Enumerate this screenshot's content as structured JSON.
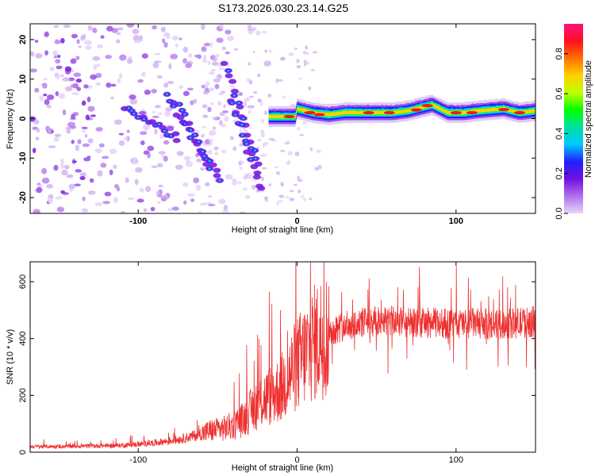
{
  "figure": {
    "title": "S173.2026.030.23.14.G25"
  },
  "colors": {
    "snr_line": "#ee3030",
    "frame": "#000000",
    "background": "#ffffff"
  },
  "chart_data": [
    {
      "type": "heatmap",
      "name": "spectrogram",
      "title": "S173.2026.030.23.14.G25",
      "xlabel": "Height of straight line (km)",
      "ylabel": "Frequency (Hz)",
      "xlim": [
        -168,
        150
      ],
      "ylim": [
        -24,
        24
      ],
      "xticks": [
        -100,
        0,
        100
      ],
      "xtick_labels": [
        "-100",
        "0",
        "100"
      ],
      "yticks": [
        -20,
        -10,
        0,
        10,
        20
      ],
      "ytick_labels": [
        "-20",
        "-10",
        "0",
        "10",
        "20"
      ],
      "colorbar": {
        "label": "Normalized spectral amplitude",
        "range": [
          0,
          0.95
        ],
        "ticks": [
          0.0,
          0.2,
          0.4,
          0.6,
          0.8
        ],
        "tick_labels": [
          "0.0",
          "0.2",
          "0.4",
          "0.6",
          "0.8"
        ],
        "colormap": [
          "#e6d6f8",
          "#b070ee",
          "#7010e0",
          "#2020ff",
          "#00c8ff",
          "#00e0a0",
          "#00ff00",
          "#c0ff00",
          "#ffd000",
          "#ff7000",
          "#ff1020",
          "#ff1080"
        ]
      },
      "ridge": {
        "points": [
          [
            0,
            2.5
          ],
          [
            5,
            2.0
          ],
          [
            10,
            1.5
          ],
          [
            20,
            1.0
          ],
          [
            30,
            1.5
          ],
          [
            40,
            1.5
          ],
          [
            60,
            1.5
          ],
          [
            70,
            2.0
          ],
          [
            75,
            2.5
          ],
          [
            85,
            3.5
          ],
          [
            90,
            2.5
          ],
          [
            95,
            1.5
          ],
          [
            105,
            1.5
          ],
          [
            115,
            2.0
          ],
          [
            130,
            2.5
          ],
          [
            140,
            1.5
          ],
          [
            150,
            2.0
          ]
        ],
        "description": "tracked signal"
      },
      "descending_branches": [
        {
          "start": [
            -108,
            3
          ],
          "end": [
            -75,
            -5
          ]
        },
        {
          "start": [
            -82,
            6
          ],
          "end": [
            -55,
            -12
          ]
        },
        {
          "start": [
            -75,
            3
          ],
          "end": [
            -48,
            -16
          ]
        },
        {
          "start": [
            -45,
            14
          ],
          "end": [
            -25,
            -12
          ]
        },
        {
          "start": [
            -42,
            5
          ],
          "end": [
            -22,
            -18
          ]
        }
      ]
    },
    {
      "type": "line",
      "name": "snr",
      "xlabel": "Height of straight line (km)",
      "ylabel": "SNR (10 * v/v)",
      "xlim": [
        -168,
        150
      ],
      "ylim": [
        0,
        670
      ],
      "xticks": [
        -100,
        0,
        100
      ],
      "xtick_labels": [
        "-100",
        "0",
        "100"
      ],
      "yticks": [
        0,
        200,
        400,
        600
      ],
      "ytick_labels": [
        "0",
        "200",
        "400",
        "600"
      ],
      "series": [
        {
          "name": "SNR",
          "color": "#ee3030",
          "x": [
            -168,
            -150,
            -130,
            -110,
            -100,
            -90,
            -80,
            -70,
            -60,
            -55,
            -50,
            -45,
            -40,
            -35,
            -30,
            -25,
            -20,
            -15,
            -10,
            -5,
            0,
            5,
            10,
            15,
            20,
            25,
            30,
            40,
            50,
            60,
            70,
            80,
            90,
            100,
            110,
            120,
            130,
            140,
            150
          ],
          "y": [
            20,
            20,
            22,
            24,
            28,
            33,
            40,
            50,
            65,
            75,
            80,
            85,
            95,
            110,
            140,
            170,
            190,
            205,
            225,
            270,
            310,
            345,
            380,
            405,
            420,
            435,
            445,
            455,
            460,
            460,
            455,
            455,
            455,
            450,
            455,
            450,
            450,
            455,
            460
          ]
        }
      ]
    }
  ]
}
